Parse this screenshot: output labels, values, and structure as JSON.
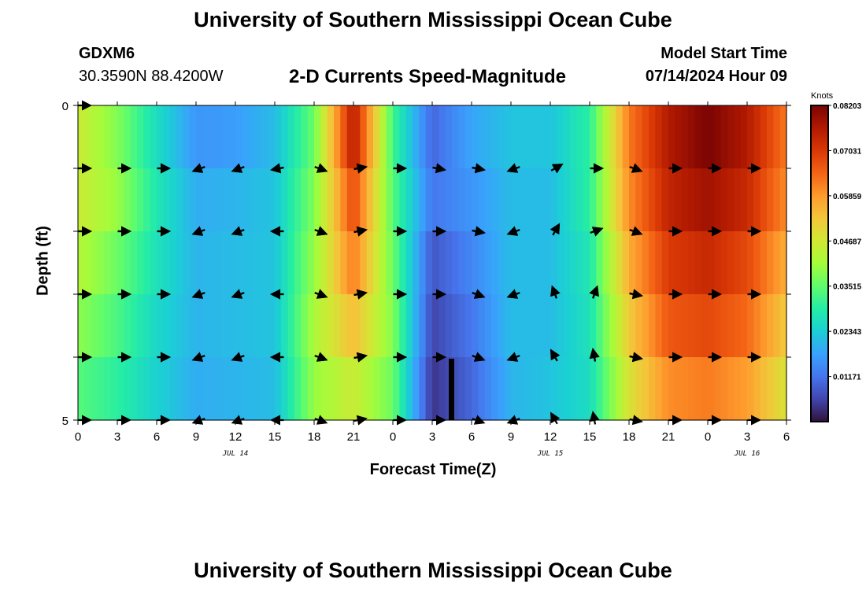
{
  "page_title": "University of Southern Mississippi Ocean Cube",
  "page_title_repeat": "University of Southern Mississippi Ocean Cube",
  "station": {
    "id": "GDXM6",
    "coordinates": "30.3590N  88.4200W"
  },
  "model": {
    "label": "Model Start Time",
    "value": "07/14/2024 Hour 09"
  },
  "chart_data": {
    "type": "heatmap",
    "title": "2-D Currents Speed-Magnitude",
    "xlabel": "Forecast Time(Z)",
    "ylabel": "Depth (ft)",
    "x_tick_labels": [
      "0",
      "3",
      "6",
      "9",
      "12",
      "15",
      "18",
      "21",
      "0",
      "3",
      "6",
      "9",
      "12",
      "15",
      "18",
      "21",
      "0",
      "3",
      "6"
    ],
    "y_tick_labels": [
      "0",
      "5"
    ],
    "date_labels": [
      {
        "text": "JUL 14",
        "hour_index": 4
      },
      {
        "text": "JUL 15",
        "hour_index": 12
      },
      {
        "text": "JUL 16",
        "hour_index": 17
      }
    ],
    "depth_rows": 5,
    "time_columns": 19,
    "colorbar": {
      "unit": "Knots",
      "min": 0.0,
      "max": 0.08203,
      "tick_labels": [
        "0.08203",
        "0.07031",
        "0.05859",
        "0.04687",
        "0.03515",
        "0.02343",
        "0.01171"
      ],
      "colors": [
        "#30123b",
        "#4145ab",
        "#4675ed",
        "#39a2fc",
        "#1bcfd4",
        "#24eca6",
        "#61fc6c",
        "#a4fc3b",
        "#d1e834",
        "#f3c63a",
        "#fe9b2d",
        "#f36315",
        "#d93806",
        "#b11901",
        "#7a0403"
      ]
    },
    "speed_grid": [
      [
        0.046,
        0.038,
        0.026,
        0.016,
        0.017,
        0.021,
        0.036,
        0.076,
        0.032,
        0.01,
        0.018,
        0.022,
        0.022,
        0.03,
        0.062,
        0.076,
        0.082,
        0.076,
        0.062
      ],
      [
        0.046,
        0.04,
        0.028,
        0.019,
        0.02,
        0.022,
        0.038,
        0.068,
        0.034,
        0.012,
        0.016,
        0.021,
        0.021,
        0.03,
        0.06,
        0.074,
        0.078,
        0.073,
        0.06
      ],
      [
        0.043,
        0.036,
        0.027,
        0.02,
        0.021,
        0.022,
        0.04,
        0.062,
        0.036,
        0.008,
        0.014,
        0.021,
        0.021,
        0.028,
        0.056,
        0.07,
        0.073,
        0.068,
        0.056
      ],
      [
        0.039,
        0.033,
        0.025,
        0.02,
        0.021,
        0.022,
        0.042,
        0.054,
        0.038,
        0.006,
        0.012,
        0.021,
        0.021,
        0.027,
        0.052,
        0.066,
        0.068,
        0.064,
        0.052
      ],
      [
        0.034,
        0.03,
        0.024,
        0.019,
        0.02,
        0.021,
        0.04,
        0.046,
        0.036,
        0.004,
        0.01,
        0.02,
        0.022,
        0.026,
        0.048,
        0.06,
        0.062,
        0.058,
        0.048
      ]
    ],
    "arrow_angles_deg": [
      [
        0,
        10,
        0,
        200,
        215,
        210,
        330,
        10,
        350,
        0,
        10,
        200,
        350,
        340,
        330,
        0,
        0,
        0,
        0
      ],
      [
        0,
        0,
        0,
        200,
        200,
        190,
        340,
        10,
        0,
        350,
        350,
        200,
        30,
        0,
        340,
        0,
        0,
        0,
        0
      ],
      [
        0,
        0,
        0,
        200,
        200,
        180,
        340,
        10,
        0,
        0,
        350,
        200,
        60,
        20,
        340,
        0,
        0,
        0,
        0
      ],
      [
        0,
        0,
        0,
        200,
        200,
        180,
        340,
        10,
        0,
        0,
        340,
        200,
        110,
        70,
        350,
        0,
        0,
        0,
        0
      ],
      [
        0,
        0,
        0,
        200,
        200,
        180,
        340,
        10,
        0,
        0,
        340,
        200,
        120,
        100,
        350,
        0,
        0,
        0,
        0
      ]
    ]
  }
}
